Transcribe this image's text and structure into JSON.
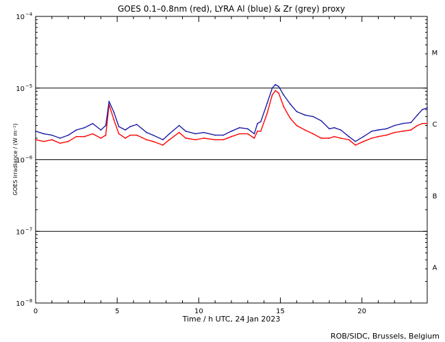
{
  "chart_data": {
    "type": "line",
    "title": "GOES 0.1–0.8nm (red), LYRA Al (blue) & Zr (grey) proxy",
    "xlabel": "Time / h UTC, 24 Jan 2023",
    "ylabel": "GOES Irradiance / (W m⁻²)",
    "credit": "ROB/SIDC, Brussels, Belgium",
    "x_unit": "hours UTC",
    "xlim": [
      0,
      24
    ],
    "ylim": [
      1e-08,
      0.0001
    ],
    "yscale": "log",
    "x_ticks": [
      0,
      5,
      10,
      15,
      20
    ],
    "x_tick_labels": [
      "0",
      "5",
      "10",
      "15",
      "20"
    ],
    "y_ticks": [
      1e-08,
      1e-07,
      1e-06,
      1e-05,
      0.0001
    ],
    "y_tick_labels": [
      {
        "base": "10",
        "exp": "−8"
      },
      {
        "base": "10",
        "exp": "−7"
      },
      {
        "base": "10",
        "exp": "−6"
      },
      {
        "base": "10",
        "exp": "−5"
      },
      {
        "base": "10",
        "exp": "−4"
      }
    ],
    "flare_class_lines": [
      1e-07,
      1e-06,
      1e-05
    ],
    "flare_classes": [
      {
        "label": "A",
        "value": 3.16e-08
      },
      {
        "label": "B",
        "value": 3.16e-07
      },
      {
        "label": "C",
        "value": 3.16e-06
      },
      {
        "label": "M",
        "value": 3.16e-05
      }
    ],
    "grid": false,
    "series": [
      {
        "color": "#ff0000",
        "x": [
          0,
          0.5,
          1,
          1.5,
          2,
          2.5,
          3,
          3.5,
          4,
          4.3,
          4.5,
          4.8,
          5.1,
          5.5,
          5.8,
          6.2,
          6.8,
          7.2,
          7.8,
          8.2,
          8.8,
          9.2,
          9.8,
          10.3,
          11,
          11.5,
          12,
          12.5,
          13,
          13.4,
          13.6,
          13.8,
          14.2,
          14.5,
          14.7,
          14.9,
          15.2,
          15.6,
          16,
          16.5,
          17,
          17.5,
          18,
          18.3,
          18.7,
          19.2,
          19.6,
          20.1,
          20.6,
          21,
          21.5,
          22,
          22.5,
          23,
          23.4,
          23.7,
          24
        ],
        "y": [
          1.9e-06,
          1.8e-06,
          1.9e-06,
          1.7e-06,
          1.8e-06,
          2.1e-06,
          2.1e-06,
          2.3e-06,
          2e-06,
          2.2e-06,
          5.9e-06,
          3.6e-06,
          2.3e-06,
          2e-06,
          2.2e-06,
          2.2e-06,
          1.9e-06,
          1.8e-06,
          1.6e-06,
          1.9e-06,
          2.4e-06,
          2e-06,
          1.9e-06,
          2e-06,
          1.9e-06,
          1.9e-06,
          2.1e-06,
          2.3e-06,
          2.3e-06,
          2e-06,
          2.5e-06,
          2.5e-06,
          4.5e-06,
          8e-06,
          9.2e-06,
          8.5e-06,
          5.5e-06,
          3.8e-06,
          3e-06,
          2.6e-06,
          2.3e-06,
          2e-06,
          2e-06,
          2.1e-06,
          2e-06,
          1.9e-06,
          1.6e-06,
          1.8e-06,
          2e-06,
          2.1e-06,
          2.2e-06,
          2.4e-06,
          2.5e-06,
          2.6e-06,
          3e-06,
          3.2e-06,
          3.2e-06
        ]
      },
      {
        "color": "#1a1aa8",
        "x": [
          0,
          0.5,
          1,
          1.5,
          2,
          2.5,
          3,
          3.5,
          4,
          4.3,
          4.5,
          4.8,
          5.1,
          5.5,
          5.8,
          6.2,
          6.8,
          7.2,
          7.8,
          8.2,
          8.8,
          9.2,
          9.8,
          10.3,
          11,
          11.5,
          12,
          12.5,
          13,
          13.4,
          13.6,
          13.8,
          14.2,
          14.5,
          14.7,
          14.9,
          15.2,
          15.6,
          16,
          16.5,
          17,
          17.5,
          18,
          18.3,
          18.7,
          19.2,
          19.6,
          20.1,
          20.6,
          21,
          21.5,
          22,
          22.5,
          23,
          23.4,
          23.7,
          24
        ],
        "y": [
          2.5e-06,
          2.3e-06,
          2.2e-06,
          2e-06,
          2.2e-06,
          2.6e-06,
          2.8e-06,
          3.2e-06,
          2.6e-06,
          3e-06,
          6.5e-06,
          4.6e-06,
          2.9e-06,
          2.6e-06,
          2.9e-06,
          3.1e-06,
          2.4e-06,
          2.2e-06,
          1.9e-06,
          2.3e-06,
          3e-06,
          2.5e-06,
          2.3e-06,
          2.4e-06,
          2.2e-06,
          2.2e-06,
          2.5e-06,
          2.8e-06,
          2.7e-06,
          2.3e-06,
          3.2e-06,
          3.4e-06,
          6.2e-06,
          1e-05,
          1.12e-05,
          1.05e-05,
          8e-06,
          6e-06,
          4.7e-06,
          4.2e-06,
          4e-06,
          3.5e-06,
          2.7e-06,
          2.8e-06,
          2.6e-06,
          2.1e-06,
          1.8e-06,
          2.1e-06,
          2.5e-06,
          2.6e-06,
          2.7e-06,
          3e-06,
          3.2e-06,
          3.3e-06,
          4.2e-06,
          5e-06,
          5.3e-06
        ]
      }
    ]
  }
}
